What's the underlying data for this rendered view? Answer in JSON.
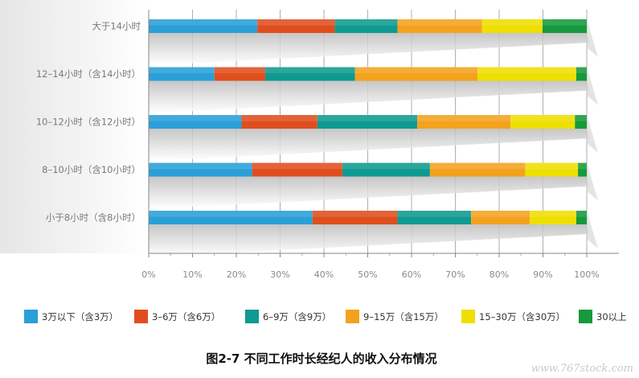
{
  "chart_data": {
    "type": "bar",
    "orientation": "horizontal",
    "stacked": "percent",
    "title": "图2-7 不同工作时长经纪人的收入分布情况",
    "categories": [
      "大于14小时",
      "12–14小时（含14小时）",
      "10–12小时（含12小时）",
      "8–10小时（含10小时）",
      "小于8小时（含8小时）"
    ],
    "x_ticks": [
      "0%",
      "10%",
      "20%",
      "30%",
      "40%",
      "50%",
      "60%",
      "70%",
      "80%",
      "90%",
      "100%"
    ],
    "xlim": [
      0,
      100
    ],
    "grid": true,
    "legend_position": "bottom",
    "series": [
      {
        "name": "3万以下（含3万）",
        "color": "#2a9fd8",
        "values": [
          24.8,
          15.0,
          21.2,
          23.6,
          37.4
        ]
      },
      {
        "name": "3–6万（含6万）",
        "color": "#e04e1e",
        "values": [
          17.7,
          11.6,
          17.3,
          20.6,
          19.4
        ]
      },
      {
        "name": "6–9万（含9万）",
        "color": "#0e9a90",
        "values": [
          14.3,
          20.5,
          22.8,
          20.0,
          16.8
        ]
      },
      {
        "name": "9–15万（含15万）",
        "color": "#f3a21d",
        "values": [
          19.3,
          28.0,
          21.3,
          21.8,
          13.4
        ]
      },
      {
        "name": "15–30万（含30万）",
        "color": "#eedf00",
        "values": [
          13.8,
          22.5,
          14.7,
          12.0,
          10.6
        ]
      },
      {
        "name": "30以上",
        "color": "#159a3c",
        "values": [
          10.1,
          2.4,
          2.7,
          2.0,
          2.4
        ]
      }
    ]
  },
  "watermark": "www.767stock.com"
}
